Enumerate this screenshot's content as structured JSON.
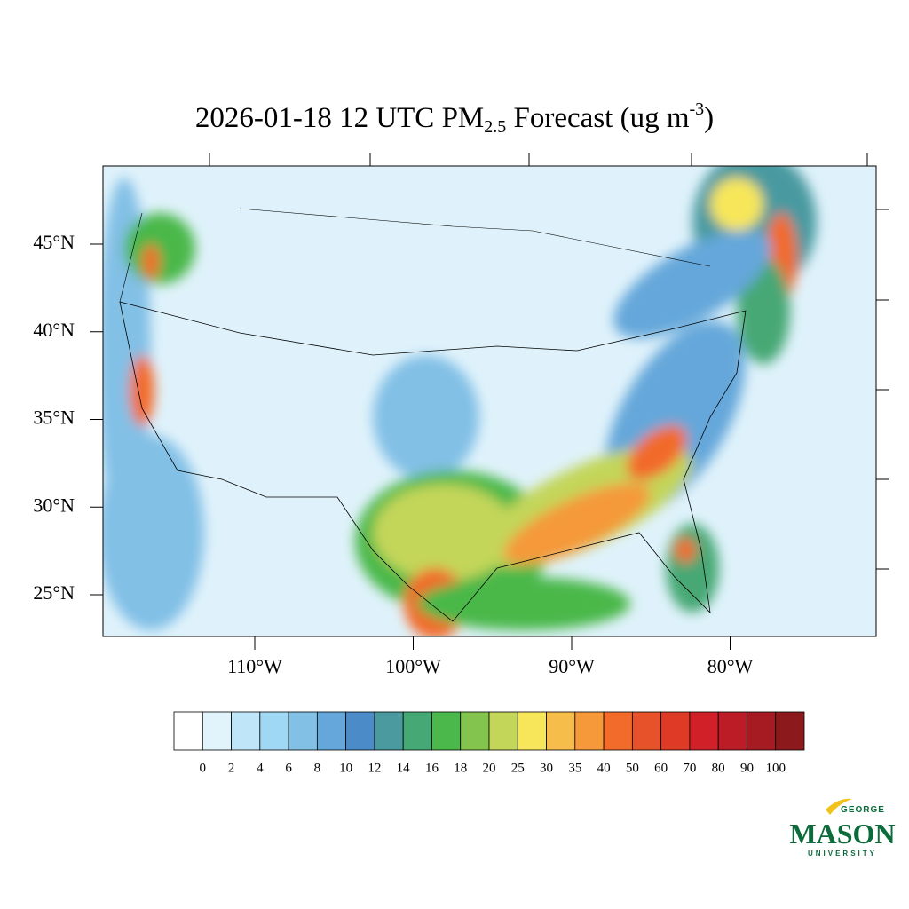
{
  "title": {
    "main": "2026-01-18 12 UTC PM",
    "sub": "2.5",
    "mid": " Forecast (ug m",
    "sup": "-3",
    "end": ")"
  },
  "map": {
    "lat_labels": [
      {
        "value": 45,
        "label": "45°N"
      },
      {
        "value": 40,
        "label": "40°N"
      },
      {
        "value": 35,
        "label": "35°N"
      },
      {
        "value": 30,
        "label": "30°N"
      },
      {
        "value": 25,
        "label": "25°N"
      }
    ],
    "lon_labels": [
      {
        "value": 110,
        "label": "110°W"
      },
      {
        "value": 100,
        "label": "100°W"
      },
      {
        "value": 90,
        "label": "90°W"
      },
      {
        "value": 80,
        "label": "80°W"
      }
    ]
  },
  "colorbar": {
    "levels": [
      0,
      2,
      4,
      6,
      8,
      10,
      12,
      14,
      16,
      18,
      20,
      25,
      30,
      35,
      40,
      50,
      60,
      70,
      80,
      90,
      100
    ],
    "colors": [
      "#ffffff",
      "#e1f3fb",
      "#bfe6f8",
      "#9fd8f5",
      "#82c0e6",
      "#65a7da",
      "#4b8cc8",
      "#4a9aa0",
      "#46a874",
      "#4ab84a",
      "#82c44e",
      "#c3d65a",
      "#f7e65a",
      "#f7bd4a",
      "#f5993a",
      "#f26b2a",
      "#e8522a",
      "#de3a26",
      "#d22028",
      "#bb1c26",
      "#a61a22",
      "#8c1a1c"
    ]
  },
  "logo": {
    "top": "GEORGE",
    "main": "MASON",
    "bottom": "UNIVERSITY"
  }
}
